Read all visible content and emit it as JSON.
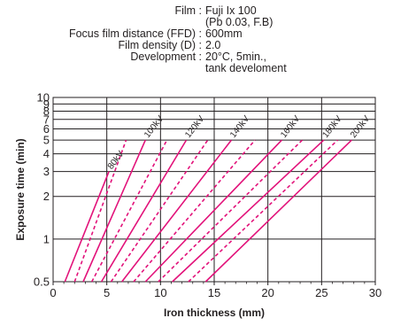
{
  "conditions": [
    {
      "label": "Film :",
      "value": [
        "Fuji Ix 100",
        "(Pb 0.03, F.B)"
      ]
    },
    {
      "label": "Focus film distance (FFD) :",
      "value": [
        "600mm"
      ]
    },
    {
      "label": "Film density (D) :",
      "value": [
        "2.0"
      ]
    },
    {
      "label": "Development :",
      "value": [
        "20°C, 5min.,",
        "tank develoment"
      ]
    }
  ],
  "chart_data": {
    "type": "line",
    "title": "",
    "xlabel": "Iron thickness (mm)",
    "ylabel": "Exposure time (min)",
    "xlim": [
      0,
      30
    ],
    "ylim": [
      0.5,
      10
    ],
    "yscale": "log",
    "grid": true,
    "xticks": [
      "0",
      "5",
      "10",
      "15",
      "20",
      "25",
      "30"
    ],
    "yticks": [
      "0.5",
      "1",
      "2",
      "3",
      "4",
      "5",
      "6",
      "7",
      "8",
      "9",
      "10"
    ],
    "line_color": "#e2127a",
    "series": [
      {
        "name": "80kV",
        "style": "solid",
        "x": [
          1.1,
          5.2
        ],
        "y": [
          0.5,
          3.0
        ]
      },
      {
        "name": "",
        "style": "dashed",
        "x": [
          2.0,
          6.8
        ],
        "y": [
          0.5,
          5.0
        ]
      },
      {
        "name": "100kV",
        "style": "solid",
        "x": [
          2.8,
          8.6
        ],
        "y": [
          0.5,
          5.0
        ]
      },
      {
        "name": "",
        "style": "dashed",
        "x": [
          3.6,
          10.6
        ],
        "y": [
          0.5,
          5.0
        ]
      },
      {
        "name": "120kV",
        "style": "solid",
        "x": [
          4.5,
          12.4
        ],
        "y": [
          0.5,
          5.0
        ]
      },
      {
        "name": "",
        "style": "dashed",
        "x": [
          5.4,
          14.4
        ],
        "y": [
          0.5,
          5.0
        ]
      },
      {
        "name": "140kV",
        "style": "solid",
        "x": [
          6.4,
          16.6
        ],
        "y": [
          0.5,
          5.0
        ]
      },
      {
        "name": "",
        "style": "dashed",
        "x": [
          7.5,
          18.8
        ],
        "y": [
          0.5,
          5.0
        ]
      },
      {
        "name": "160kV",
        "style": "solid",
        "x": [
          8.6,
          21.3
        ],
        "y": [
          0.5,
          5.0
        ]
      },
      {
        "name": "",
        "style": "dashed",
        "x": [
          9.8,
          23.2
        ],
        "y": [
          0.5,
          5.0
        ]
      },
      {
        "name": "180kV",
        "style": "solid",
        "x": [
          11.1,
          25.2
        ],
        "y": [
          0.5,
          5.0
        ]
      },
      {
        "name": "",
        "style": "dashed",
        "x": [
          12.6,
          26.5
        ],
        "y": [
          0.5,
          5.0
        ]
      },
      {
        "name": "200kV",
        "style": "solid",
        "x": [
          14.2,
          27.8
        ],
        "y": [
          0.5,
          5.0
        ]
      }
    ]
  }
}
